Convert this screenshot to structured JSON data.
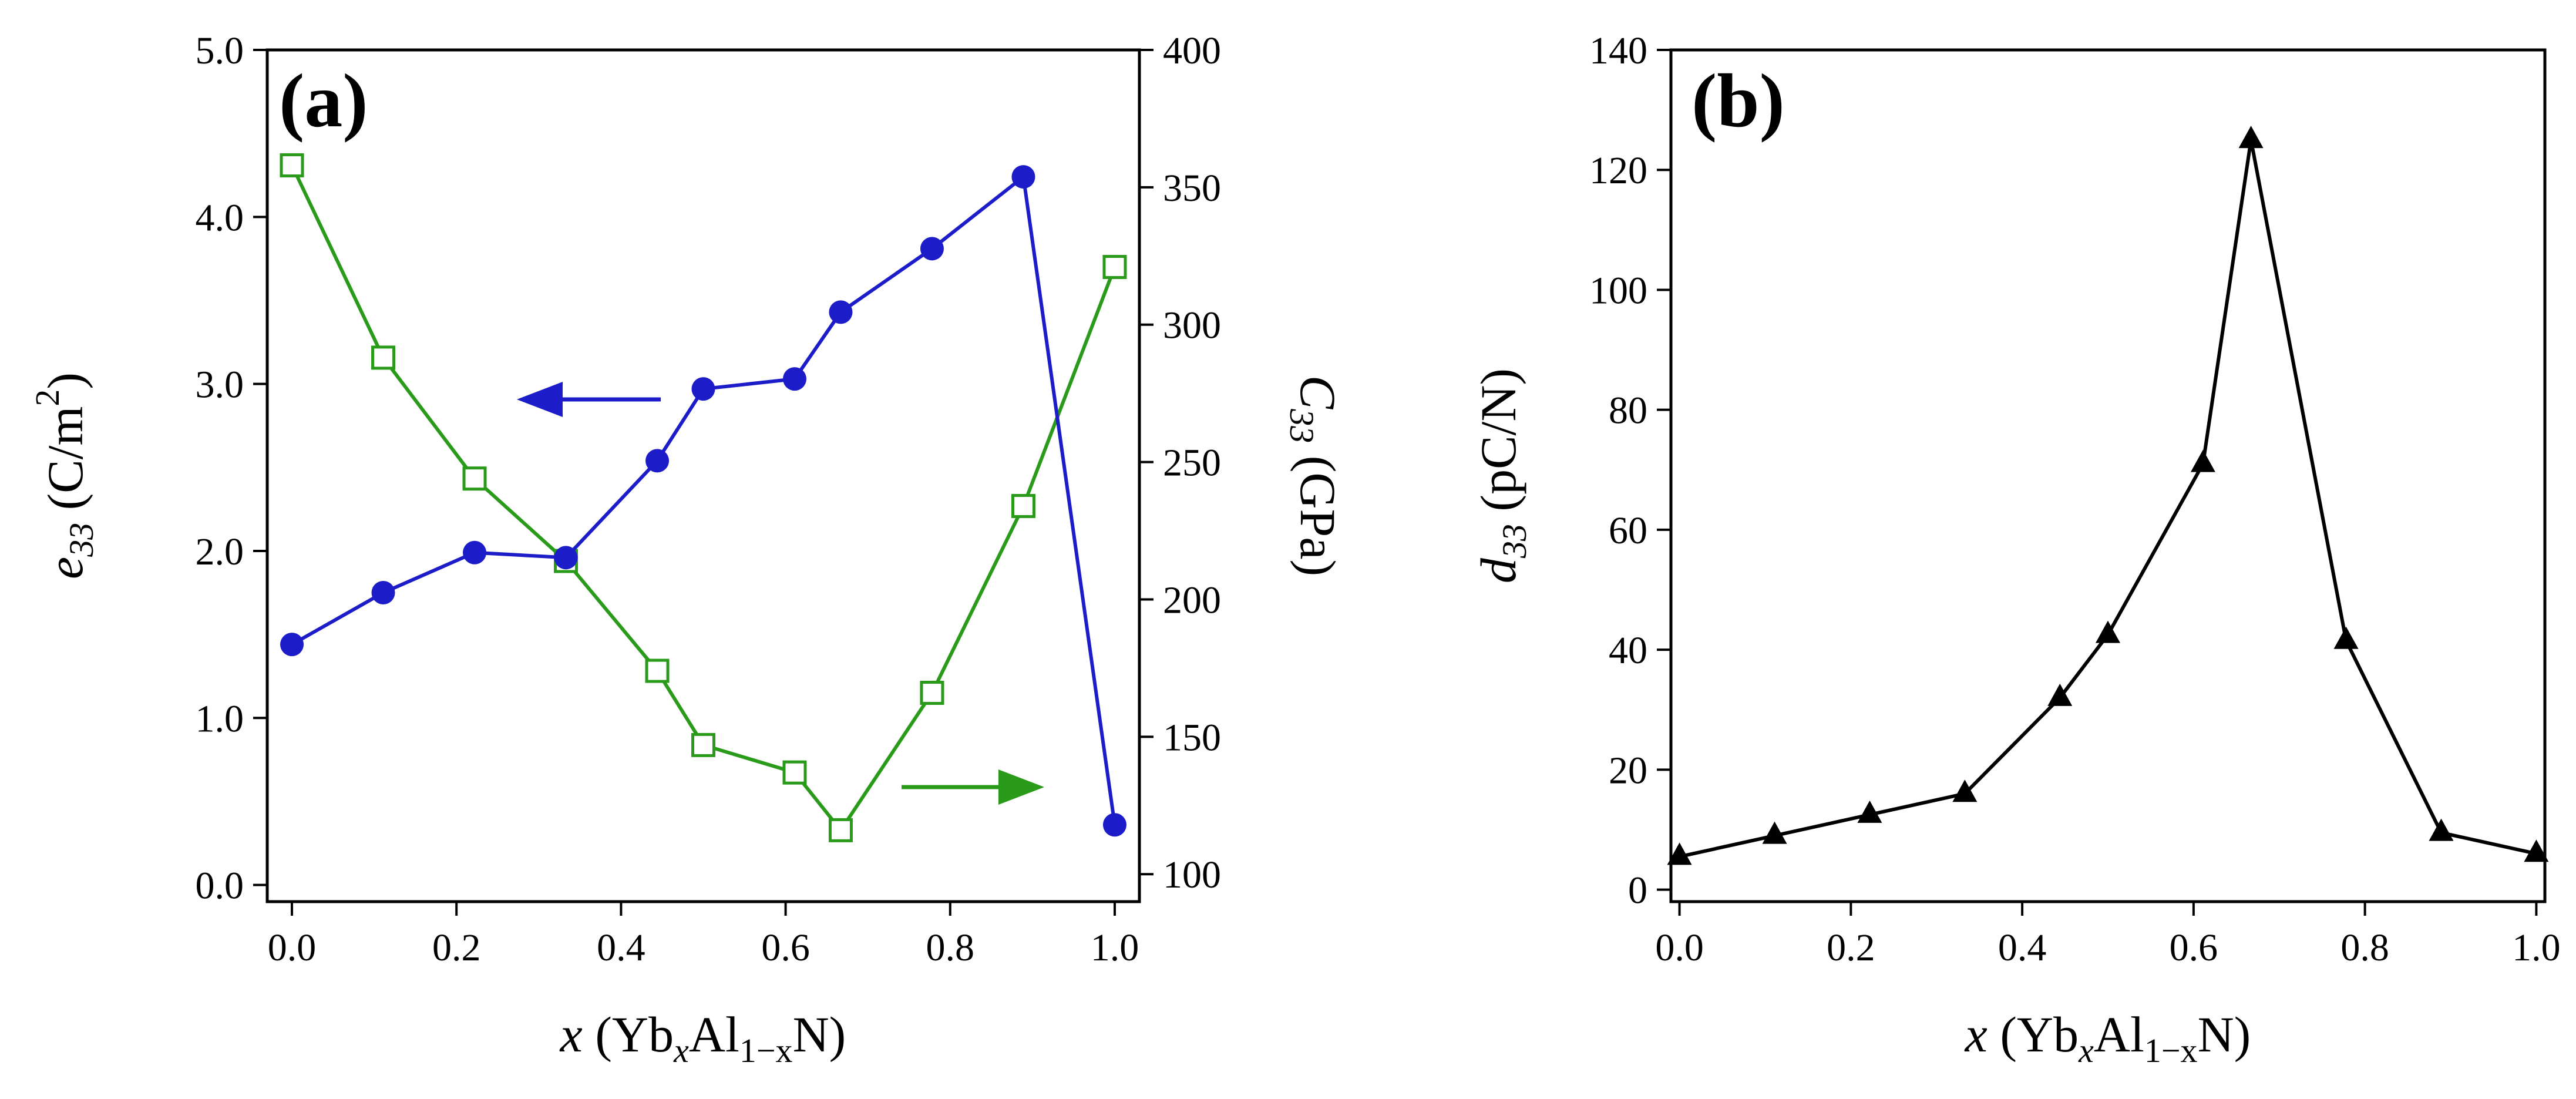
{
  "chart_data": [
    {
      "type": "line",
      "panel_label": "(a)",
      "x": [
        0.0,
        0.111,
        0.222,
        0.333,
        0.444,
        0.5,
        0.611,
        0.667,
        0.778,
        0.889,
        1.0
      ],
      "xlim": [
        -0.03,
        1.03
      ],
      "x_ticks": [
        "0.0",
        "0.2",
        "0.4",
        "0.6",
        "0.8",
        "1.0"
      ],
      "x_tick_values": [
        0.0,
        0.2,
        0.4,
        0.6,
        0.8,
        1.0
      ],
      "xlabel": {
        "var": "x",
        "open": "(Yb",
        "sub1": "x",
        "mid": "Al",
        "sub2": "1−x",
        "close": "N)"
      },
      "ylim_left": [
        -0.1,
        5.0
      ],
      "y_ticks_left": [
        "0.0",
        "1.0",
        "2.0",
        "3.0",
        "4.0",
        "5.0"
      ],
      "y_tick_values_left": [
        0.0,
        1.0,
        2.0,
        3.0,
        4.0,
        5.0
      ],
      "ylabel_left": {
        "var": "e",
        "sub": "33",
        "unit": "(C/m",
        "sup": "2",
        "close": ")"
      },
      "ylim_right": [
        90,
        400
      ],
      "y_ticks_right": [
        "100",
        "150",
        "200",
        "250",
        "300",
        "350",
        "400"
      ],
      "y_tick_values_right": [
        100,
        150,
        200,
        250,
        300,
        350,
        400
      ],
      "ylabel_right": {
        "var": "C",
        "sub": "33",
        "unit": "(GPa)"
      },
      "series": [
        {
          "name": "e33",
          "axis": "left",
          "color": "#1c1cc8",
          "marker": "circle",
          "values": [
            1.44,
            1.75,
            1.99,
            1.96,
            2.54,
            2.97,
            3.03,
            3.43,
            3.81,
            4.24,
            0.36
          ]
        },
        {
          "name": "C33",
          "axis": "right",
          "color": "#2a9a1a",
          "marker": "open-square",
          "values": [
            358,
            288,
            244,
            214,
            174,
            147,
            137,
            116,
            166,
            234,
            321
          ]
        }
      ],
      "arrows": [
        {
          "color": "#1c1cc8",
          "direction": "left"
        },
        {
          "color": "#2a9a1a",
          "direction": "right"
        }
      ]
    },
    {
      "type": "line",
      "panel_label": "(b)",
      "x": [
        0.0,
        0.111,
        0.222,
        0.333,
        0.444,
        0.5,
        0.611,
        0.667,
        0.778,
        0.889,
        1.0
      ],
      "xlim": [
        -0.01,
        1.01
      ],
      "x_ticks": [
        "0.0",
        "0.2",
        "0.4",
        "0.6",
        "0.8",
        "1.0"
      ],
      "x_tick_values": [
        0.0,
        0.2,
        0.4,
        0.6,
        0.8,
        1.0
      ],
      "xlabel": {
        "var": "x",
        "open": "(Yb",
        "sub1": "x",
        "mid": "Al",
        "sub2": "1−x",
        "close": "N)"
      },
      "ylim": [
        -2,
        140
      ],
      "y_ticks": [
        "0",
        "20",
        "40",
        "60",
        "80",
        "100",
        "120",
        "140"
      ],
      "y_tick_values": [
        0,
        20,
        40,
        60,
        80,
        100,
        120,
        140
      ],
      "ylabel": {
        "var": "d",
        "sub": "33",
        "unit": "(pC/N)"
      },
      "series": [
        {
          "name": "d33",
          "color": "#000000",
          "marker": "triangle",
          "values": [
            5.5,
            9.0,
            12.5,
            16.0,
            32.0,
            42.5,
            71.0,
            125.0,
            41.5,
            9.5,
            6.0
          ]
        }
      ]
    }
  ]
}
